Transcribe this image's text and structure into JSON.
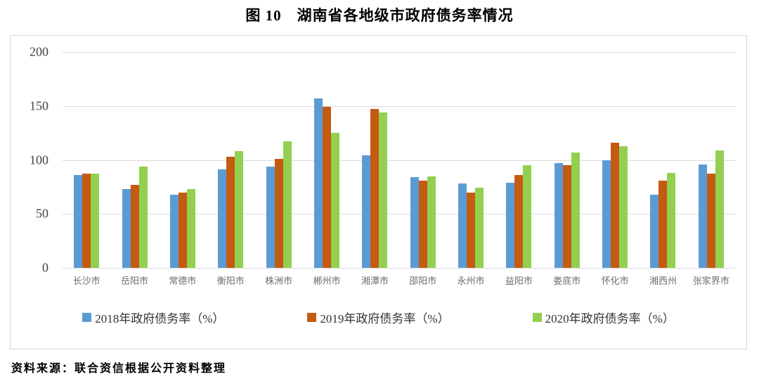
{
  "title": "图 10　湖南省各地级市政府债务率情况",
  "source_note": "资料来源：联合资信根据公开资料整理",
  "axis": {
    "y_tick_labels": [
      "0",
      "50",
      "100",
      "150",
      "200"
    ],
    "grid_color": "#dcdcdc",
    "label_color": "#6d6d6d"
  },
  "chart_data": {
    "type": "bar",
    "title": "图 10　湖南省各地级市政府债务率情况",
    "categories": [
      "长沙市",
      "岳阳市",
      "常德市",
      "衡阳市",
      "株洲市",
      "郴州市",
      "湘潭市",
      "邵阳市",
      "永州市",
      "益阳市",
      "娄底市",
      "怀化市",
      "湘西州",
      "张家界市"
    ],
    "series": [
      {
        "name": "2018年政府债务率（%）",
        "color": "#5B9BD5",
        "values": [
          86,
          73,
          68,
          91,
          94,
          157,
          104,
          84,
          78,
          79,
          97,
          100,
          68,
          96
        ]
      },
      {
        "name": "2019年政府债务率（%）",
        "color": "#C55A11",
        "values": [
          87,
          77,
          70,
          103,
          101,
          149,
          147,
          81,
          70,
          86,
          95,
          116,
          81,
          87
        ]
      },
      {
        "name": "2020年政府债务率（%）",
        "color": "#92D050",
        "values": [
          87,
          94,
          73,
          108,
          117,
          125,
          144,
          85,
          74,
          95,
          107,
          113,
          88,
          109
        ]
      }
    ],
    "xlabel": "",
    "ylabel": "",
    "ylim": [
      0,
      200
    ],
    "yticks": [
      0,
      50,
      100,
      150,
      200
    ],
    "grid": true,
    "legend_position": "bottom"
  }
}
